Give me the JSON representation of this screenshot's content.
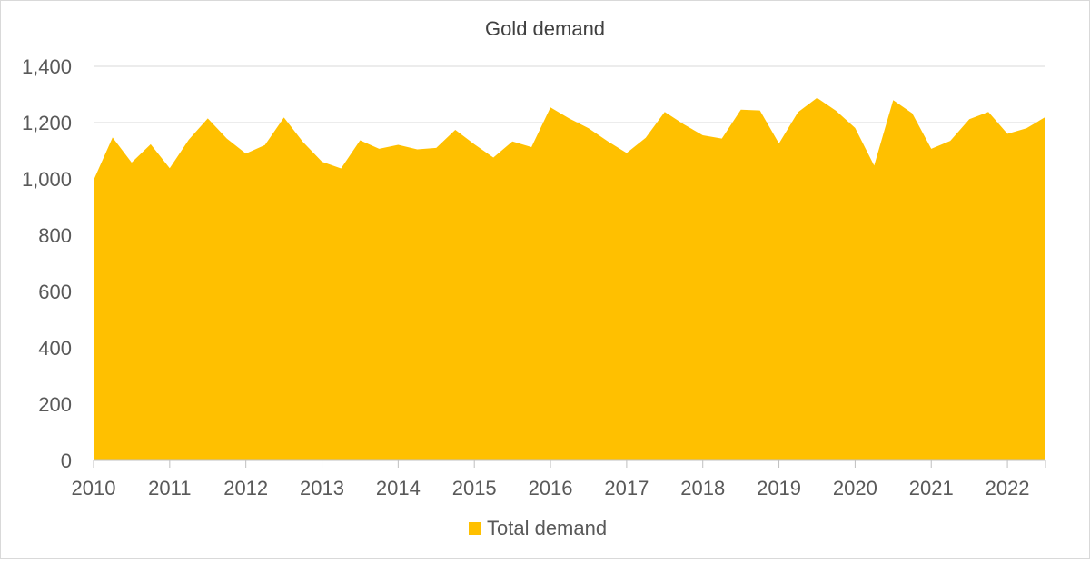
{
  "chart_data": {
    "type": "area",
    "title": "Gold demand",
    "xlabel": "",
    "ylabel": "",
    "x_tick_labels": [
      "2010",
      "2011",
      "2012",
      "2013",
      "2014",
      "2015",
      "2016",
      "2017",
      "2018",
      "2019",
      "2020",
      "2021",
      "2022"
    ],
    "y_tick_labels": [
      "0",
      "200",
      "400",
      "600",
      "800",
      "1,000",
      "1,200",
      "1,400"
    ],
    "ylim": [
      0,
      1400
    ],
    "grid": true,
    "legend_position": "bottom",
    "colors": {
      "area": "#FFC000",
      "grid": "#d9d9d9",
      "axis": "#bfbfbf",
      "text": "#595959",
      "title": "#404040"
    },
    "series": [
      {
        "name": "Total demand",
        "x": [
          "2010 Q1",
          "2010 Q2",
          "2010 Q3",
          "2010 Q4",
          "2011 Q1",
          "2011 Q2",
          "2011 Q3",
          "2011 Q4",
          "2012 Q1",
          "2012 Q2",
          "2012 Q3",
          "2012 Q4",
          "2013 Q1",
          "2013 Q2",
          "2013 Q3",
          "2013 Q4",
          "2014 Q1",
          "2014 Q2",
          "2014 Q3",
          "2014 Q4",
          "2015 Q1",
          "2015 Q2",
          "2015 Q3",
          "2015 Q4",
          "2016 Q1",
          "2016 Q2",
          "2016 Q3",
          "2016 Q4",
          "2017 Q1",
          "2017 Q2",
          "2017 Q3",
          "2017 Q4",
          "2018 Q1",
          "2018 Q2",
          "2018 Q3",
          "2018 Q4",
          "2019 Q1",
          "2019 Q2",
          "2019 Q3",
          "2019 Q4",
          "2020 Q1",
          "2020 Q2",
          "2020 Q3",
          "2020 Q4",
          "2021 Q1",
          "2021 Q2",
          "2021 Q3",
          "2021 Q4",
          "2022 Q1",
          "2022 Q2",
          "2022 Q3"
        ],
        "values": [
          995,
          1147,
          1058,
          1123,
          1038,
          1139,
          1215,
          1143,
          1090,
          1120,
          1218,
          1131,
          1061,
          1037,
          1137,
          1107,
          1121,
          1105,
          1110,
          1174,
          1123,
          1076,
          1133,
          1113,
          1254,
          1214,
          1180,
          1134,
          1092,
          1146,
          1238,
          1194,
          1155,
          1143,
          1246,
          1243,
          1126,
          1237,
          1288,
          1242,
          1181,
          1047,
          1280,
          1233,
          1107,
          1135,
          1212,
          1238,
          1160,
          1180,
          1220
        ]
      }
    ]
  }
}
